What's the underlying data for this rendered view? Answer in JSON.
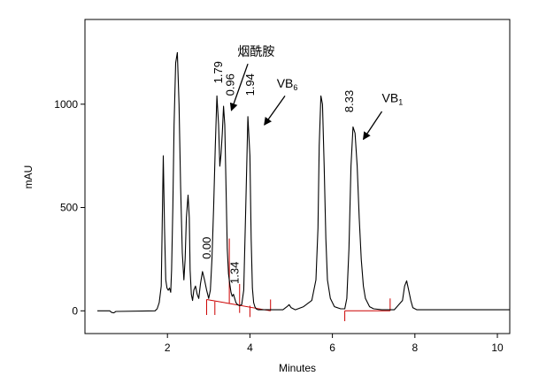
{
  "chart_data": {
    "type": "line",
    "xlabel": "Minutes",
    "ylabel": "mAU",
    "xlim": [
      0,
      10.3
    ],
    "ylim": [
      -110,
      1410
    ],
    "x_ticks": [
      "2",
      "4",
      "6",
      "8",
      "10"
    ],
    "y_ticks": [
      "0",
      "500",
      "1000"
    ],
    "series": [
      {
        "color": "#000000",
        "x": [
          0.3,
          0.6,
          0.65,
          0.7,
          0.75,
          1.7,
          1.75,
          1.8,
          1.85,
          1.88,
          1.9,
          1.93,
          1.96,
          1.99,
          2.02,
          2.05,
          2.08,
          2.1,
          2.13,
          2.16,
          2.2,
          2.24,
          2.28,
          2.32,
          2.36,
          2.4,
          2.43,
          2.46,
          2.5,
          2.53,
          2.55,
          2.58,
          2.61,
          2.64,
          2.68,
          2.72,
          2.76,
          2.8,
          2.85,
          2.9,
          2.95,
          3.0,
          3.04,
          3.08,
          3.12,
          3.16,
          3.2,
          3.24,
          3.27,
          3.3,
          3.33,
          3.36,
          3.39,
          3.42,
          3.45,
          3.48,
          3.51,
          3.54,
          3.57,
          3.6,
          3.63,
          3.66,
          3.7,
          3.75,
          3.8,
          3.85,
          3.9,
          3.95,
          4.0,
          4.03,
          4.06,
          4.09,
          4.12,
          4.15,
          4.2,
          4.3,
          4.4,
          4.6,
          4.8,
          4.9,
          4.95,
          5.0,
          5.1,
          5.3,
          5.5,
          5.6,
          5.65,
          5.68,
          5.72,
          5.76,
          5.8,
          5.84,
          5.88,
          5.95,
          6.05,
          6.2,
          6.3,
          6.35,
          6.4,
          6.45,
          6.5,
          6.55,
          6.6,
          6.65,
          6.7,
          6.75,
          6.8,
          6.9,
          7.0,
          7.2,
          7.5,
          7.7,
          7.75,
          7.8,
          7.85,
          7.9,
          7.95,
          8.05,
          8.3,
          9.0,
          10.0,
          10.3
        ],
        "y": [
          0,
          0,
          -8,
          -10,
          -3,
          0,
          10,
          40,
          120,
          500,
          750,
          400,
          150,
          110,
          100,
          110,
          90,
          200,
          500,
          900,
          1200,
          1250,
          1000,
          600,
          280,
          150,
          250,
          450,
          560,
          450,
          200,
          80,
          50,
          100,
          120,
          80,
          60,
          130,
          190,
          150,
          100,
          60,
          100,
          250,
          500,
          800,
          1040,
          900,
          700,
          760,
          860,
          990,
          900,
          600,
          300,
          180,
          130,
          90,
          70,
          80,
          60,
          40,
          30,
          25,
          30,
          100,
          500,
          940,
          750,
          350,
          110,
          40,
          20,
          10,
          5,
          5,
          5,
          5,
          5,
          20,
          30,
          15,
          5,
          20,
          50,
          150,
          400,
          800,
          1040,
          1000,
          700,
          350,
          150,
          60,
          20,
          10,
          10,
          60,
          300,
          700,
          890,
          860,
          700,
          450,
          250,
          120,
          60,
          20,
          10,
          5,
          5,
          50,
          120,
          145,
          100,
          50,
          15,
          5,
          5,
          5,
          5,
          5
        ]
      }
    ],
    "baselines": [
      {
        "color": "#cc0000",
        "x": [
          2.95,
          4.5
        ],
        "y": [
          55,
          0
        ]
      },
      {
        "color": "#cc0000",
        "x": [
          6.3,
          7.4
        ],
        "y": [
          0,
          0
        ]
      }
    ],
    "markers": {
      "color": "#cc0000",
      "items": [
        {
          "x": 2.95,
          "y1": -20,
          "y2": 55
        },
        {
          "x": 3.15,
          "y1": -20,
          "y2": 45
        },
        {
          "x": 3.5,
          "y1": 35,
          "y2": 350
        },
        {
          "x": 3.75,
          "y1": -10,
          "y2": 130
        },
        {
          "x": 4.0,
          "y1": -30,
          "y2": 25
        },
        {
          "x": 4.5,
          "y1": 0,
          "y2": 55
        },
        {
          "x": 6.3,
          "y1": -50,
          "y2": 0
        },
        {
          "x": 7.4,
          "y1": 0,
          "y2": 60
        }
      ]
    },
    "peak_labels": [
      {
        "text": "0.00",
        "x": 3.05,
        "y": 250
      },
      {
        "text": "1.34",
        "x": 3.72,
        "y": 130
      },
      {
        "text": "1.79",
        "x": 3.33,
        "y": 1100
      },
      {
        "text": "0.96",
        "x": 3.62,
        "y": 1040
      },
      {
        "text": "1.94",
        "x": 4.1,
        "y": 1040
      },
      {
        "text": "8.33",
        "x": 6.5,
        "y": 960
      }
    ],
    "annotations": [
      {
        "text": "烟酰胺",
        "sub": "",
        "text_x": 3.7,
        "text_y": 1235,
        "arrow_from": [
          3.95,
          1195
        ],
        "arrow_to": [
          3.55,
          970
        ]
      },
      {
        "text": "VB",
        "sub": "6",
        "text_x": 4.65,
        "text_y": 1080,
        "arrow_from": [
          4.85,
          1040
        ],
        "arrow_to": [
          4.35,
          900
        ]
      },
      {
        "text": "VB",
        "sub": "1",
        "text_x": 7.2,
        "text_y": 1010,
        "arrow_from": [
          7.2,
          965
        ],
        "arrow_to": [
          6.75,
          830
        ]
      }
    ]
  }
}
